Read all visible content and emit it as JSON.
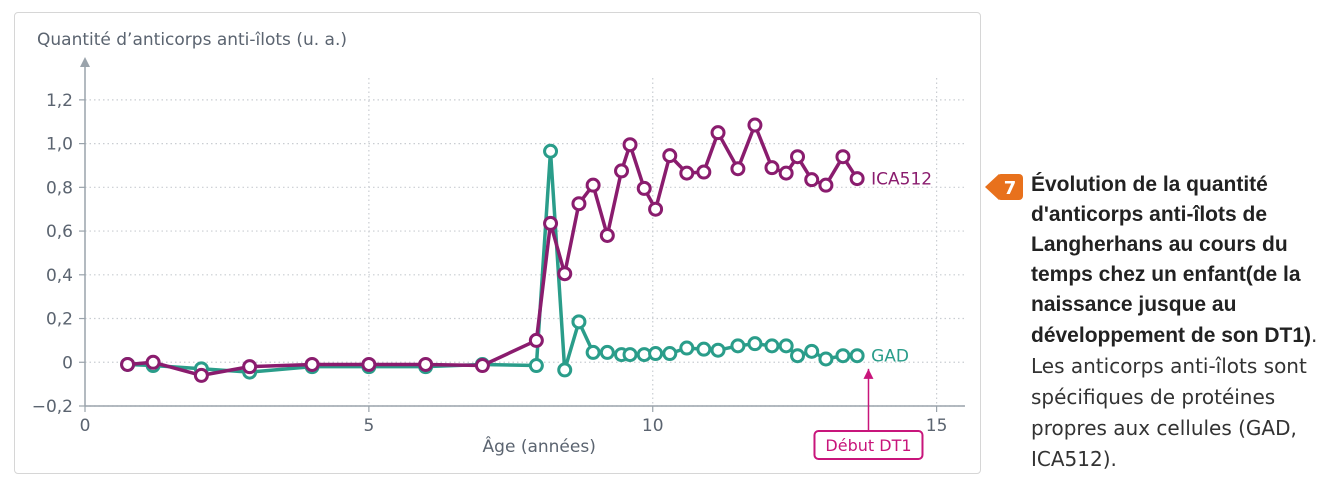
{
  "colors": {
    "ica512": "#8a1c6e",
    "gad": "#2a9d8a",
    "axis": "#9aa3ab",
    "text": "#5b6470",
    "grid": "#c9cdd2",
    "badge": "#e8711c",
    "debut_box": "#c8157b"
  },
  "figure": {
    "number": "7",
    "caption_bold": "Évolution de la quantité d'anticorps anti-îlots de Langherhans au cours du temps chez un enfant(de la naissance jusque au développement de son DT1)",
    "caption_normal": ". Les anticorps anti-îlots sont spécifiques de protéines propres aux cellules   (GAD, ICA512)."
  },
  "chart_data": {
    "type": "line",
    "ylabel": "Quantité d’anticorps anti-îlots (u. a.)",
    "xlabel": "Âge (années)",
    "xlim": [
      0,
      15.5
    ],
    "ylim": [
      -0.2,
      1.3
    ],
    "x_ticks": [
      0,
      5,
      10,
      15
    ],
    "x_tick_labels": [
      "0",
      "5",
      "10",
      "15"
    ],
    "y_ticks": [
      -0.2,
      0,
      0.2,
      0.4,
      0.6,
      0.8,
      1.0,
      1.2
    ],
    "y_tick_labels": [
      "−0,2",
      "0",
      "0,2",
      "0,4",
      "0,6",
      "0,8",
      "1,0",
      "1,2"
    ],
    "grid": "dotted",
    "series": [
      {
        "name": "GAD",
        "x": [
          0.75,
          1.2,
          2.05,
          2.9,
          4.0,
          5.0,
          6.0,
          7.0,
          7.95,
          8.2,
          8.45,
          8.7,
          8.95,
          9.2,
          9.45,
          9.6,
          9.85,
          10.05,
          10.3,
          10.6,
          10.9,
          11.15,
          11.5,
          11.8,
          12.1,
          12.35,
          12.55,
          12.8,
          13.05,
          13.35,
          13.6
        ],
        "y": [
          -0.01,
          -0.015,
          -0.03,
          -0.045,
          -0.02,
          -0.02,
          -0.02,
          -0.01,
          -0.015,
          0.965,
          -0.035,
          0.185,
          0.045,
          0.045,
          0.035,
          0.035,
          0.035,
          0.04,
          0.04,
          0.065,
          0.06,
          0.055,
          0.075,
          0.085,
          0.075,
          0.075,
          0.03,
          0.05,
          0.015,
          0.03,
          0.03
        ]
      },
      {
        "name": "ICA512",
        "x": [
          0.75,
          1.2,
          2.05,
          2.9,
          4.0,
          5.0,
          6.0,
          7.0,
          7.95,
          8.2,
          8.45,
          8.7,
          8.95,
          9.2,
          9.45,
          9.6,
          9.85,
          10.05,
          10.3,
          10.6,
          10.9,
          11.15,
          11.5,
          11.8,
          12.1,
          12.35,
          12.55,
          12.8,
          13.05,
          13.35,
          13.6
        ],
        "y": [
          -0.01,
          0.0,
          -0.06,
          -0.02,
          -0.01,
          -0.01,
          -0.01,
          -0.015,
          0.1,
          0.635,
          0.405,
          0.725,
          0.81,
          0.58,
          0.875,
          0.995,
          0.795,
          0.7,
          0.945,
          0.865,
          0.87,
          1.05,
          0.885,
          1.085,
          0.89,
          0.865,
          0.94,
          0.835,
          0.81,
          0.94,
          0.84
        ]
      }
    ],
    "annotation": {
      "label": "Début DT1",
      "x": 13.8
    }
  }
}
